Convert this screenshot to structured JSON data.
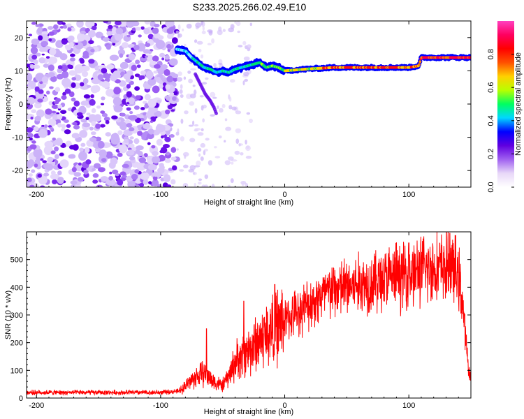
{
  "title": "S233.2025.266.02.49.E10",
  "chart_data": [
    {
      "type": "heatmap",
      "xlabel": "Height of straight line (km)",
      "ylabel": "Frequency (Hz)",
      "xlim": [
        -208,
        150
      ],
      "ylim": [
        -25,
        25
      ],
      "xticks": [
        -200,
        -100,
        0,
        100
      ],
      "yticks": [
        20,
        10,
        0,
        -10,
        -20
      ],
      "noise_region_x": [
        -208,
        -87
      ],
      "trace": {
        "x": [
          -87,
          -80,
          -75,
          -70,
          -65,
          -60,
          -55,
          -50,
          -45,
          -40,
          -35,
          -30,
          -25,
          -20,
          -15,
          -10,
          -5,
          0,
          10,
          20,
          30,
          40,
          50,
          60,
          70,
          80,
          90,
          100,
          108,
          110,
          120,
          130,
          140,
          150
        ],
        "y": [
          16.5,
          16,
          14,
          12.5,
          11,
          10.5,
          9.5,
          10,
          9.5,
          10.5,
          11,
          11.5,
          12,
          12.5,
          11,
          11.5,
          11,
          10,
          10.3,
          10.6,
          10.8,
          11,
          11,
          11,
          11,
          11,
          11,
          11,
          11.5,
          14,
          14,
          14,
          14,
          14
        ]
      },
      "side_branch": {
        "x": [
          -72,
          -68,
          -64,
          -60,
          -57,
          -55
        ],
        "y": [
          9,
          6,
          3,
          1,
          -1,
          -3
        ]
      },
      "colorbar": {
        "label": "Normalized spectral amplitude",
        "range": [
          0,
          1
        ],
        "ticks": [
          "0.0",
          "0.2",
          "0.4",
          "0.6",
          "0.8"
        ],
        "colors": [
          "#ffffff",
          "#e8d8f8",
          "#a060f0",
          "#6000e0",
          "#0000ff",
          "#00d8ff",
          "#00ff60",
          "#b8ff00",
          "#ffd000",
          "#ff5000",
          "#ff0000",
          "#ff0060",
          "#ff40c0"
        ]
      }
    },
    {
      "type": "line",
      "xlabel": "Height of straight line (km)",
      "ylabel": "SNR (10 * v/v)",
      "xlim": [
        -208,
        150
      ],
      "ylim": [
        0,
        600
      ],
      "xticks": [
        -200,
        -100,
        0,
        100
      ],
      "yticks": [
        0,
        100,
        200,
        300,
        400,
        500
      ],
      "color": "#ff0000",
      "envelope": {
        "x": [
          -208,
          -150,
          -100,
          -85,
          -80,
          -75,
          -70,
          -65,
          -60,
          -55,
          -50,
          -45,
          -40,
          -30,
          -20,
          -10,
          0,
          10,
          20,
          30,
          40,
          50,
          60,
          70,
          80,
          90,
          100,
          110,
          120,
          125,
          130,
          135,
          140,
          143,
          146,
          148,
          150
        ],
        "y": [
          20,
          20,
          20,
          25,
          45,
          65,
          80,
          90,
          70,
          55,
          45,
          80,
          130,
          170,
          210,
          250,
          280,
          310,
          340,
          370,
          390,
          400,
          410,
          420,
          430,
          440,
          450,
          460,
          470,
          470,
          470,
          470,
          440,
          360,
          200,
          110,
          70
        ]
      },
      "spikes": [
        {
          "x": -63,
          "y": 250
        },
        {
          "x": -33,
          "y": 350
        },
        {
          "x": -8,
          "y": 410
        },
        {
          "x": 100,
          "y": 560
        },
        {
          "x": 133,
          "y": 595
        }
      ]
    }
  ]
}
